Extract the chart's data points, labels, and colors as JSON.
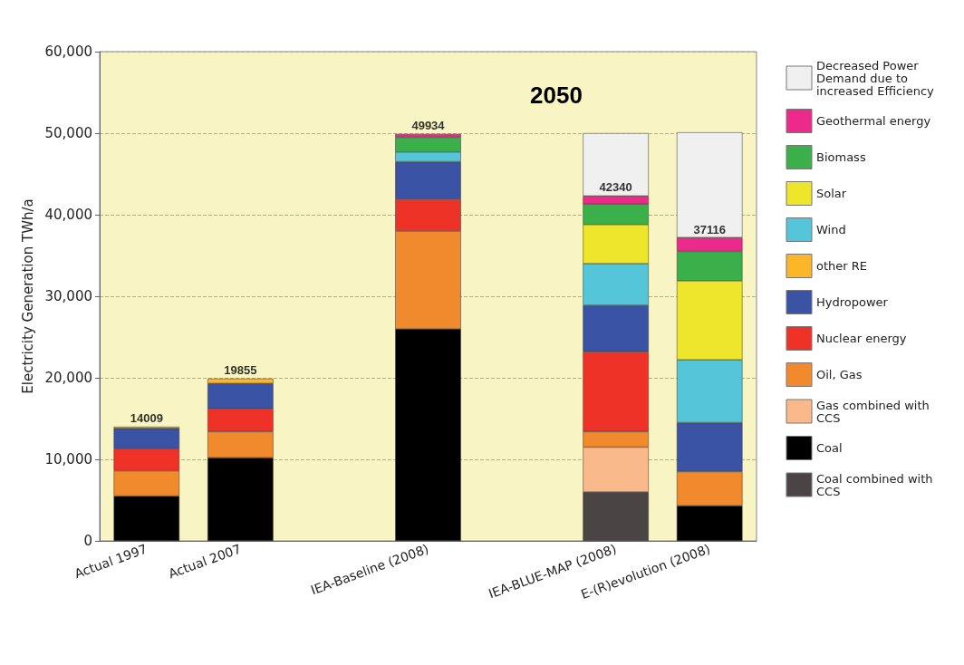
{
  "chart_data": {
    "type": "bar",
    "stacked": true,
    "ylabel": "Electricity Generation TWh/a",
    "annotations": [
      "2050",
      {
        "text": "14009",
        "x": "Actual 1997",
        "y": 14009
      },
      {
        "text": "19855",
        "x": "Actual 2007",
        "y": 19855
      },
      {
        "text": "49934",
        "x": "IEA-Baseline (2008)",
        "y": 49934
      },
      {
        "text": "42340",
        "x": "IEA-BLUE-MAP (2008)",
        "y": 42340
      },
      {
        "text": "37116",
        "x": "E-(R)evolution (2008)",
        "y": 37116
      }
    ],
    "categories": [
      "Actual 1997",
      "Actual 2007",
      null,
      "IEA-Baseline (2008)",
      null,
      "IEA-BLUE-MAP (2008)",
      "E-(R)evolution (2008)"
    ],
    "ylim": [
      0,
      60000
    ],
    "yticks": [
      0,
      {
        "value": 10000,
        "label": "10,000"
      },
      {
        "value": 20000,
        "label": "20,000"
      },
      {
        "value": 30000,
        "label": "30,000"
      },
      {
        "value": 40000,
        "label": "40,000"
      },
      {
        "value": 50000,
        "label": "50,000"
      },
      {
        "value": 60000,
        "label": "60,000"
      }
    ],
    "grid": "y",
    "legend": "right",
    "series": [
      {
        "name": "Coal combined with CCS",
        "color": "#4a4444",
        "values": [
          null,
          null,
          null,
          null,
          null,
          6000,
          null
        ]
      },
      {
        "name": "Coal",
        "color": "#000000",
        "values": [
          5500,
          10200,
          null,
          26000,
          null,
          null,
          4300
        ]
      },
      {
        "name": "Gas combined with CCS",
        "color": "#f9b98a",
        "values": [
          null,
          null,
          null,
          null,
          null,
          5500,
          null
        ]
      },
      {
        "name": "Oil, Gas",
        "color": "#f08a2c",
        "values": [
          3100,
          3200,
          null,
          12000,
          null,
          1900,
          4200
        ]
      },
      {
        "name": "Nuclear energy",
        "color": "#ee3228",
        "values": [
          2700,
          2800,
          null,
          3900,
          null,
          9800,
          null
        ]
      },
      {
        "name": "Hydropower",
        "color": "#3a53a4",
        "values": [
          2500,
          3100,
          null,
          4600,
          null,
          5700,
          6000
        ]
      },
      {
        "name": "other RE",
        "color": "#fbb62a",
        "values": [
          200,
          600,
          null,
          null,
          null,
          null,
          null
        ]
      },
      {
        "name": "Wind",
        "color": "#55c5d9",
        "values": [
          null,
          null,
          null,
          1200,
          null,
          5100,
          7700
        ]
      },
      {
        "name": "Solar",
        "color": "#ede62a",
        "values": [
          null,
          null,
          null,
          null,
          null,
          4800,
          9700
        ]
      },
      {
        "name": "Biomass",
        "color": "#3bb04a",
        "values": [
          null,
          null,
          null,
          1800,
          null,
          2500,
          3600
        ]
      },
      {
        "name": "Geothermal energy",
        "color": "#ec2a8c",
        "values": [
          null,
          null,
          null,
          400,
          null,
          1000,
          1700
        ]
      },
      {
        "name": "Decreased Power Demand due to increased Efficiency",
        "color": "#f0f0f0",
        "values": [
          null,
          null,
          null,
          null,
          null,
          7700,
          12900
        ]
      }
    ]
  }
}
